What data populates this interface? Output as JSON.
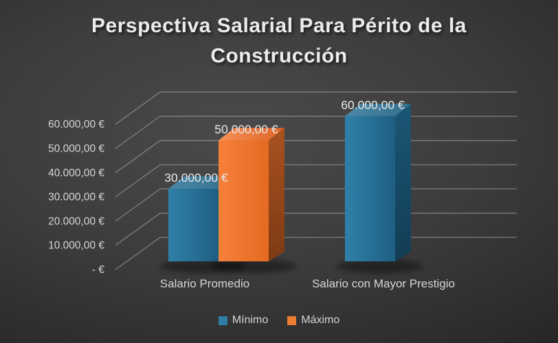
{
  "chart_data": {
    "type": "bar",
    "subtype": "3d-column",
    "title": "Perspectiva Salarial Para Périto de la Construcción",
    "categories": [
      "Salario Promedio",
      "Salario con Mayor Prestigio"
    ],
    "series": [
      {
        "name": "Mínimo",
        "color": "#2e7ea6",
        "palette": {
          "front_light": "#2f80a9",
          "front_dark": "#1e5f82",
          "top_light": "#4b88a7",
          "top_dark": "#356f8e",
          "side_light": "#1b5675",
          "side_dark": "#123d55"
        },
        "values": [
          30000,
          60000
        ],
        "labels": [
          "30.000,00 €",
          "60.000,00 €"
        ]
      },
      {
        "name": "Máximo",
        "color": "#ed7d31",
        "palette": {
          "front_light": "#f5803a",
          "front_dark": "#e56a22",
          "top_light": "#f69057",
          "top_dark": "#dd6425",
          "side_light": "#a85220",
          "side_dark": "#7e3a14"
        },
        "values": [
          50000,
          null
        ],
        "labels": [
          "50.000,00 €",
          null
        ]
      }
    ],
    "ylim": [
      0,
      60000
    ],
    "ytick_step": 10000,
    "yticks": [
      "- €",
      "10.000,00 €",
      "20.000,00 €",
      "30.000,00 €",
      "40.000,00 €",
      "50.000,00 €",
      "60.000,00 €"
    ],
    "grid": true,
    "legend_position": "bottom",
    "colors": {
      "background_center": "#4a4a4a",
      "background_edge": "#141414",
      "gridline": "#9b9b9b",
      "title_text": "#ececec",
      "axis_text": "#d6d6d6",
      "data_label_text": "#eaeaea"
    }
  }
}
